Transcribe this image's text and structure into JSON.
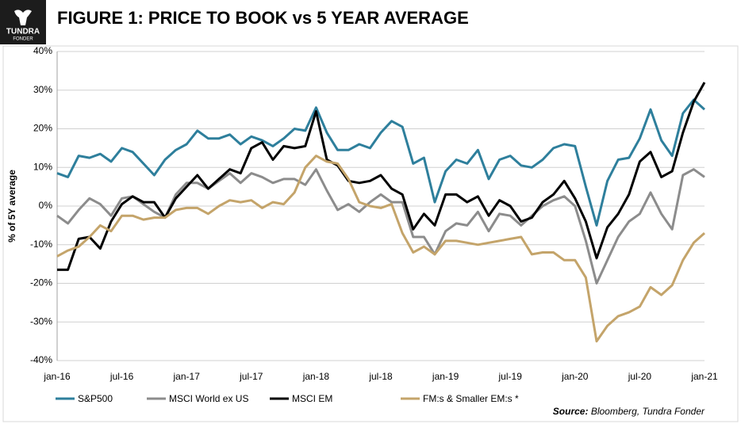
{
  "logo": {
    "name": "TUNDRA",
    "sub": "FONDER"
  },
  "chart_data": {
    "type": "line",
    "title": "FIGURE 1: PRICE TO BOOK vs 5 YEAR AVERAGE",
    "y_label": "% of 5Y average",
    "source_label": "Source:",
    "source_text": "Bloomberg, Tundra Fonder",
    "categories": [
      "jan-16",
      null,
      null,
      null,
      null,
      null,
      "jul-16",
      null,
      null,
      null,
      null,
      null,
      "jan-17",
      null,
      null,
      null,
      null,
      null,
      "jul-17",
      null,
      null,
      null,
      null,
      null,
      "jan-18",
      null,
      null,
      null,
      null,
      null,
      "jul-18",
      null,
      null,
      null,
      null,
      null,
      "jan-19",
      null,
      null,
      null,
      null,
      null,
      "jul-19",
      null,
      null,
      null,
      null,
      null,
      "jan-20",
      null,
      null,
      null,
      null,
      null,
      "jul-20",
      null,
      null,
      null,
      null,
      null,
      "jan-21"
    ],
    "ylim": [
      -40,
      40
    ],
    "yticks": [
      {
        "value": -40,
        "label": "-40%"
      },
      {
        "value": -30,
        "label": "-30%"
      },
      {
        "value": -20,
        "label": "-20%"
      },
      {
        "value": -10,
        "label": "-10%"
      },
      {
        "value": 0,
        "label": "0%"
      },
      {
        "value": 10,
        "label": "10%"
      },
      {
        "value": 20,
        "label": "20%"
      },
      {
        "value": 30,
        "label": "30%"
      },
      {
        "value": 40,
        "label": "40%"
      }
    ],
    "grid": true,
    "series": [
      {
        "name": "S&P500",
        "color": "#2e7f9c",
        "values": [
          8.5,
          7.5,
          13,
          12.5,
          13.5,
          11.5,
          15,
          14,
          11,
          8,
          12,
          14.5,
          16,
          19.5,
          17.5,
          17.5,
          18.5,
          16,
          18,
          17,
          15.5,
          17.5,
          20,
          19.5,
          25.5,
          19,
          14.5,
          14.5,
          16,
          15,
          19,
          22,
          20.5,
          11,
          12.5,
          1,
          9,
          12,
          11,
          14.5,
          7,
          12,
          13,
          10.5,
          10,
          12,
          15,
          16,
          15.5,
          5,
          -5,
          6.5,
          12,
          12.5,
          17.5,
          25,
          17,
          13,
          24,
          27.5,
          25
        ]
      },
      {
        "name": "MSCI World ex US",
        "color": "#8c8c8c",
        "values": [
          -2.5,
          -4.5,
          -1,
          2,
          0.5,
          -2.5,
          2,
          2.5,
          0.5,
          -1.5,
          -3,
          3,
          6,
          6,
          4.5,
          6.5,
          8.5,
          6,
          8.5,
          7.5,
          6,
          7,
          7,
          5.5,
          9.5,
          4,
          -1,
          0.5,
          -1.5,
          1,
          3,
          1,
          1,
          -8,
          -8,
          -12.5,
          -6.5,
          -4.5,
          -5,
          -1.5,
          -6.5,
          -2,
          -2.5,
          -5,
          -2.5,
          0,
          1.5,
          2.5,
          0,
          -9,
          -20,
          -14,
          -8,
          -4,
          -2,
          3.5,
          -2,
          -6,
          8,
          9.5,
          7.5
        ]
      },
      {
        "name": "MSCI EM",
        "color": "#000000",
        "values": [
          -16.5,
          -16.5,
          -8.5,
          -8,
          -11,
          -4,
          0.5,
          2.5,
          1,
          1,
          -3,
          2,
          5,
          8,
          4.5,
          7,
          9.5,
          8.5,
          15,
          16.5,
          12,
          15.5,
          15,
          15.5,
          24.5,
          12,
          10.5,
          6.5,
          6,
          6.5,
          8,
          4.5,
          3,
          -6,
          -2,
          -5,
          3,
          3,
          1,
          2.5,
          -2.5,
          1.5,
          0,
          -4,
          -3,
          1,
          3,
          6.5,
          2,
          -4,
          -13.5,
          -5.5,
          -2,
          3,
          11.5,
          14,
          7.5,
          9,
          19,
          27,
          32
        ]
      },
      {
        "name": "FM:s & Smaller EM:s *",
        "color": "#c4a46a",
        "values": [
          -13,
          -11.5,
          -10.5,
          -8,
          -5,
          -6.5,
          -2.5,
          -2.5,
          -3.5,
          -3,
          -3,
          -1,
          -0.5,
          -0.5,
          -2,
          0,
          1.5,
          1,
          1.5,
          -0.5,
          1,
          0.5,
          3.5,
          10,
          13,
          11.5,
          11,
          7,
          1,
          0,
          -0.5,
          0.5,
          -7,
          -12,
          -10.5,
          -12.5,
          -9,
          -9,
          -9.5,
          -10,
          -9.5,
          -9,
          -8.5,
          -8,
          -12.5,
          -12,
          -12,
          -14,
          -14,
          -18.5,
          -35,
          -31,
          -28.5,
          -27.5,
          -26,
          -21,
          -23,
          -20.5,
          -14,
          -9.5,
          -7
        ]
      }
    ]
  }
}
